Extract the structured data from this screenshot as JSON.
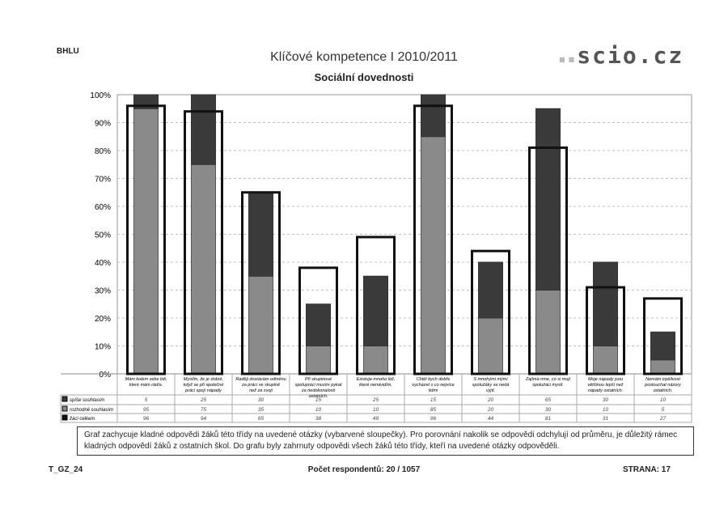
{
  "header": {
    "school": "BHLU",
    "title": "Klíčové kompetence I 2010/2011",
    "logo": "scio.cz"
  },
  "chart_data": {
    "type": "bar",
    "title": "Sociální dovednosti",
    "ylim": [
      0,
      100
    ],
    "yticks": [
      "0%",
      "10%",
      "20%",
      "30%",
      "40%",
      "50%",
      "60%",
      "70%",
      "80%",
      "90%",
      "100%"
    ],
    "categories": [
      "Mám kolem sebe lidi, které mám rád/a.",
      "Myslím, že je dobré, když se při společné práci spojí nápady",
      "Raději dostávám odměnu za práci ve skupině než za svoji",
      "Při skupinové spolupráci musím pykat za nedokonalosti ostatních.",
      "Existuje mnoho lidí, které nenávidím.",
      "Chtěl bych dobře vycházet s co nejvíce lidmi",
      "S mnohými mými spolužáky se nedá vyjít.",
      "Zajímá mne, co si mojí spolužáci myslí.",
      "Moje nápady jsou většinou lepší než nápady ostatních.",
      "Nemám trpělivost poslouchat názory ostatních."
    ],
    "series": [
      {
        "name": "spíše souhlasím",
        "values": [
          5,
          25,
          30,
          15,
          25,
          15,
          20,
          65,
          30,
          10
        ],
        "color": "#3a3a3a"
      },
      {
        "name": "rozhodně souhlasím",
        "values": [
          95,
          75,
          35,
          10,
          10,
          85,
          20,
          30,
          10,
          5
        ],
        "color": "#8a8a8a"
      },
      {
        "name": "žáci celkem",
        "values": [
          96,
          94,
          65,
          38,
          49,
          96,
          44,
          81,
          31,
          27
        ],
        "color": "#111111"
      }
    ]
  },
  "note": "Graf zachycuje kladné odpovědi žáků této třídy na uvedené otázky (vybarvené sloupečky). Pro porovnání nakolik se odpovědi odchylují od průměru, je důležitý rámec kladných odpovědí žáků z ostatních škol. Do grafu byly zahrnuty odpovědi všech žáků této třídy, kteří na uvedené otázky odpověděli.",
  "footer": {
    "code": "T_GZ_24",
    "respondents": "Počet respondentů: 20 / 1057",
    "page": "STRANA: 17"
  }
}
